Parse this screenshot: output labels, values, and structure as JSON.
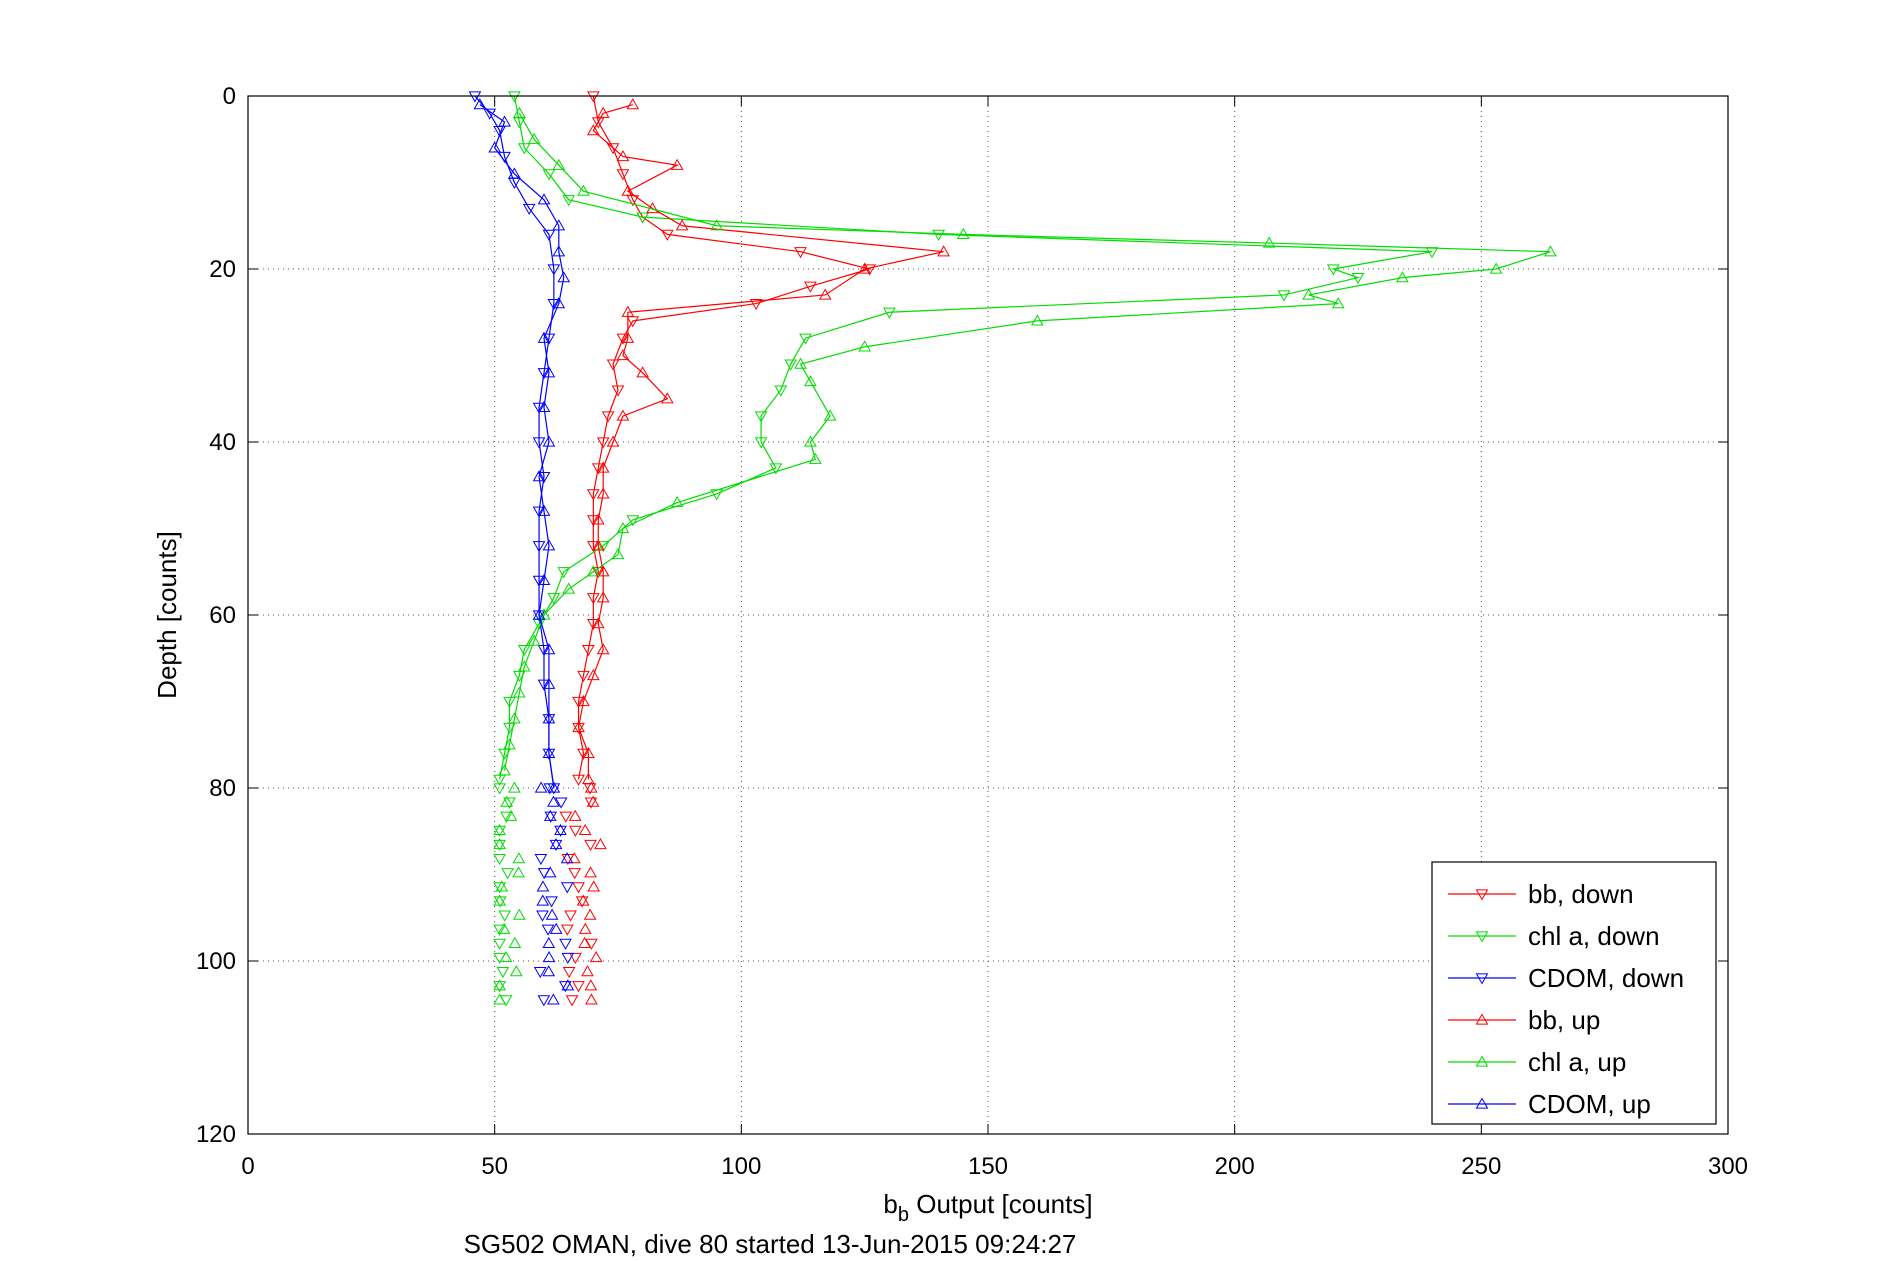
{
  "chart_data": {
    "type": "line",
    "title": "",
    "xlabel": "b",
    "xlabel_sub": "b",
    "xlabel_rest": " Output [counts]",
    "ylabel": "Depth [counts]",
    "footer": "SG502 OMAN, dive 80 started 13-Jun-2015 09:24:27",
    "xlim": [
      0,
      300
    ],
    "ylim": [
      0,
      120
    ],
    "y_reversed": true,
    "grid": true,
    "legend_position": "bottom-right",
    "xticks": [
      "0",
      "50",
      "100",
      "150",
      "200",
      "250",
      "300"
    ],
    "yticks": [
      "0",
      "20",
      "40",
      "60",
      "80",
      "100",
      "120"
    ],
    "series": [
      {
        "name": "bb, down",
        "color": "#ff0000",
        "marker": "triangle-down",
        "points": [
          [
            70,
            0
          ],
          [
            71,
            3
          ],
          [
            74,
            6
          ],
          [
            76,
            9
          ],
          [
            78,
            12
          ],
          [
            80,
            14
          ],
          [
            85,
            16
          ],
          [
            112,
            18
          ],
          [
            126,
            20
          ],
          [
            114,
            22
          ],
          [
            103,
            24
          ],
          [
            78,
            26
          ],
          [
            76,
            28
          ],
          [
            74,
            31
          ],
          [
            75,
            34
          ],
          [
            73,
            37
          ],
          [
            72,
            40
          ],
          [
            71,
            43
          ],
          [
            70,
            46
          ],
          [
            70,
            49
          ],
          [
            70,
            52
          ],
          [
            71,
            55
          ],
          [
            70,
            58
          ],
          [
            70,
            61
          ],
          [
            69,
            64
          ],
          [
            68,
            67
          ],
          [
            67,
            70
          ],
          [
            67,
            73
          ],
          [
            68,
            76
          ],
          [
            67,
            79
          ]
        ]
      },
      {
        "name": "chl a, down",
        "color": "#00dd00",
        "marker": "triangle-down",
        "points": [
          [
            54,
            0
          ],
          [
            55,
            3
          ],
          [
            56,
            6
          ],
          [
            61,
            9
          ],
          [
            65,
            12
          ],
          [
            80,
            14
          ],
          [
            140,
            16
          ],
          [
            240,
            18
          ],
          [
            220,
            20
          ],
          [
            225,
            21
          ],
          [
            210,
            23
          ],
          [
            130,
            25
          ],
          [
            113,
            28
          ],
          [
            110,
            31
          ],
          [
            108,
            34
          ],
          [
            104,
            37
          ],
          [
            104,
            40
          ],
          [
            107,
            43
          ],
          [
            95,
            46
          ],
          [
            78,
            49
          ],
          [
            72,
            52
          ],
          [
            64,
            55
          ],
          [
            62,
            58
          ],
          [
            59,
            61
          ],
          [
            56,
            64
          ],
          [
            55,
            67
          ],
          [
            53,
            70
          ],
          [
            53,
            73
          ],
          [
            52,
            76
          ],
          [
            51,
            79
          ]
        ]
      },
      {
        "name": "CDOM, down",
        "color": "#0000ff",
        "marker": "triangle-down",
        "points": [
          [
            46,
            0
          ],
          [
            49,
            2
          ],
          [
            51,
            4
          ],
          [
            52,
            7
          ],
          [
            54,
            10
          ],
          [
            57,
            13
          ],
          [
            61,
            16
          ],
          [
            62,
            20
          ],
          [
            62,
            24
          ],
          [
            61,
            28
          ],
          [
            60,
            32
          ],
          [
            59,
            36
          ],
          [
            59,
            40
          ],
          [
            60,
            44
          ],
          [
            59,
            48
          ],
          [
            59,
            52
          ],
          [
            59,
            56
          ],
          [
            59,
            60
          ],
          [
            60,
            64
          ],
          [
            60,
            68
          ],
          [
            61,
            72
          ],
          [
            61,
            76
          ],
          [
            62,
            80
          ]
        ]
      },
      {
        "name": "bb, up",
        "color": "#ff0000",
        "marker": "triangle-up",
        "points": [
          [
            78,
            1
          ],
          [
            72,
            2
          ],
          [
            70,
            4
          ],
          [
            76,
            7
          ],
          [
            87,
            8
          ],
          [
            77,
            11
          ],
          [
            82,
            13
          ],
          [
            88,
            15
          ],
          [
            141,
            18
          ],
          [
            125,
            20
          ],
          [
            117,
            23
          ],
          [
            77,
            25
          ],
          [
            77,
            28
          ],
          [
            76,
            30
          ],
          [
            80,
            32
          ],
          [
            85,
            35
          ],
          [
            76,
            37
          ],
          [
            74,
            40
          ],
          [
            72,
            43
          ],
          [
            72,
            46
          ],
          [
            71,
            49
          ],
          [
            71,
            52
          ],
          [
            72,
            55
          ],
          [
            72,
            58
          ],
          [
            71,
            61
          ],
          [
            72,
            64
          ],
          [
            70,
            67
          ],
          [
            68,
            70
          ],
          [
            67,
            73
          ],
          [
            69,
            76
          ],
          [
            69,
            79
          ]
        ]
      },
      {
        "name": "chl a, up",
        "color": "#00dd00",
        "marker": "triangle-up",
        "points": [
          [
            55,
            2
          ],
          [
            58,
            5
          ],
          [
            63,
            8
          ],
          [
            68,
            11
          ],
          [
            95,
            15
          ],
          [
            145,
            16
          ],
          [
            207,
            17
          ],
          [
            264,
            18
          ],
          [
            253,
            20
          ],
          [
            234,
            21
          ],
          [
            215,
            23
          ],
          [
            221,
            24
          ],
          [
            160,
            26
          ],
          [
            125,
            29
          ],
          [
            112,
            31
          ],
          [
            114,
            33
          ],
          [
            118,
            37
          ],
          [
            114,
            40
          ],
          [
            115,
            42
          ],
          [
            87,
            47
          ],
          [
            76,
            50
          ],
          [
            75,
            53
          ],
          [
            70,
            55
          ],
          [
            65,
            57
          ],
          [
            60,
            60
          ],
          [
            58,
            63
          ],
          [
            56,
            66
          ],
          [
            55,
            69
          ],
          [
            54,
            72
          ],
          [
            53,
            75
          ],
          [
            52,
            78
          ]
        ]
      },
      {
        "name": "CDOM, up",
        "color": "#0000ff",
        "marker": "triangle-up",
        "points": [
          [
            47,
            1
          ],
          [
            52,
            3
          ],
          [
            50,
            6
          ],
          [
            54,
            9
          ],
          [
            60,
            12
          ],
          [
            63,
            15
          ],
          [
            63,
            18
          ],
          [
            64,
            21
          ],
          [
            63,
            24
          ],
          [
            60,
            28
          ],
          [
            61,
            32
          ],
          [
            60,
            36
          ],
          [
            61,
            40
          ],
          [
            59,
            44
          ],
          [
            60,
            48
          ],
          [
            61,
            52
          ],
          [
            60,
            56
          ],
          [
            59,
            60
          ],
          [
            61,
            64
          ],
          [
            61,
            68
          ],
          [
            61,
            72
          ],
          [
            61,
            76
          ],
          [
            62,
            80
          ]
        ]
      }
    ],
    "scatter_tail": {
      "x_range": [
        51,
        72
      ],
      "y_range": [
        80,
        104.5
      ]
    }
  }
}
